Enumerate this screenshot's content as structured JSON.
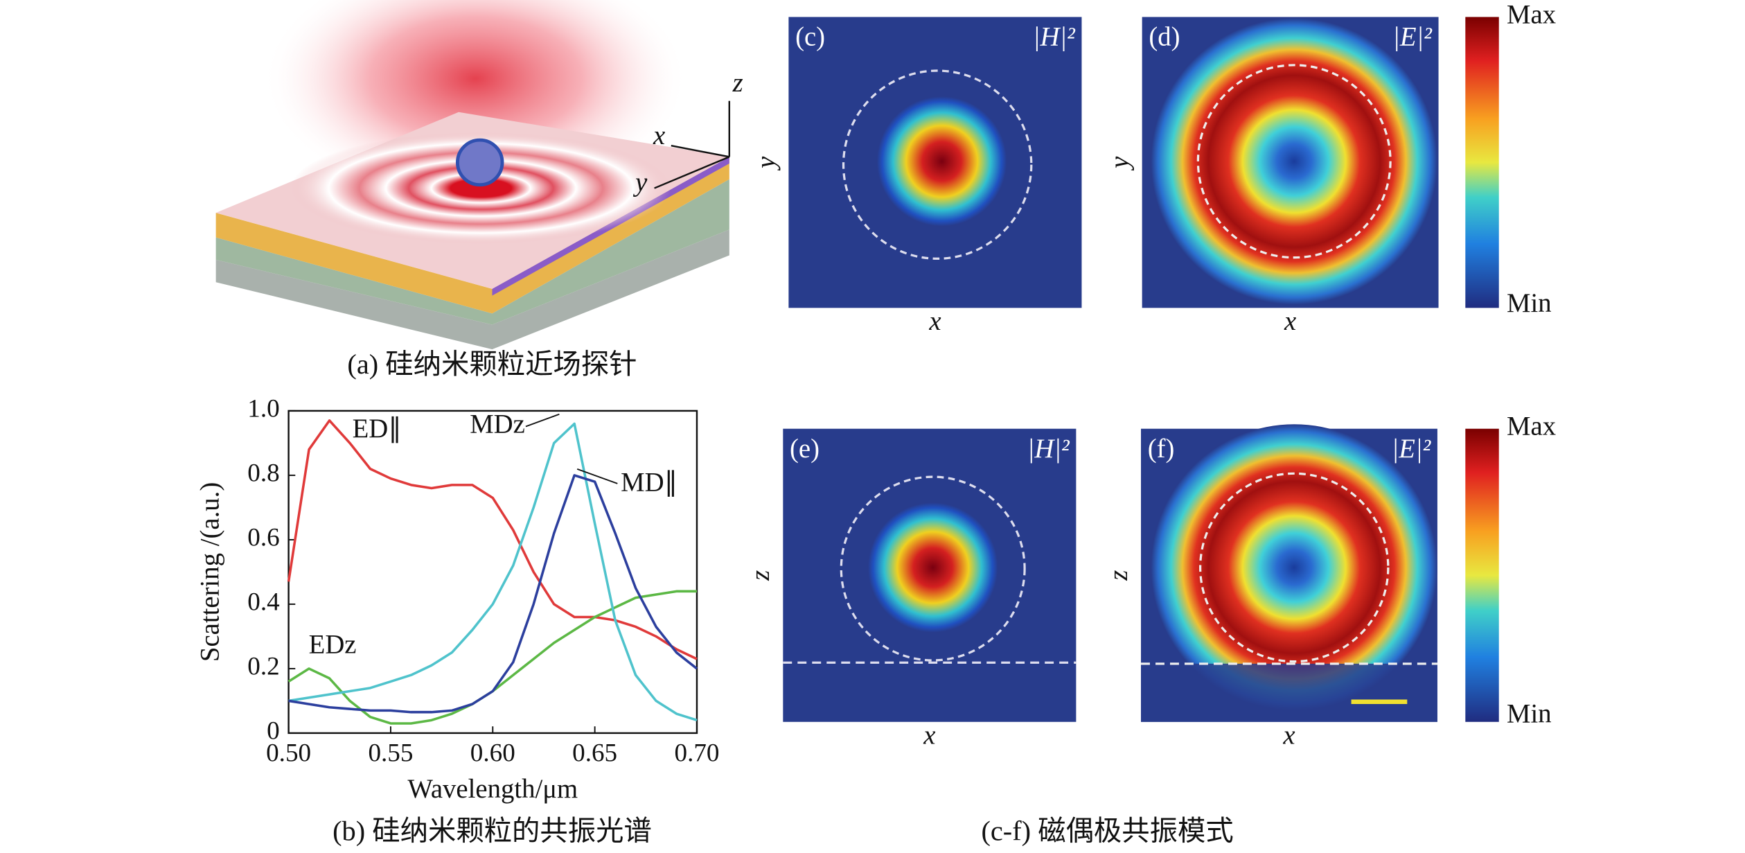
{
  "chart_data": {
    "type": "line",
    "xlabel": "Wavelength/μm",
    "ylabel": "Scattering /(a.u.)",
    "x": [
      0.5,
      0.51,
      0.52,
      0.53,
      0.54,
      0.55,
      0.56,
      0.57,
      0.58,
      0.59,
      0.6,
      0.61,
      0.62,
      0.63,
      0.64,
      0.65,
      0.66,
      0.67,
      0.68,
      0.69,
      0.7
    ],
    "series": [
      {
        "name": "ED∥",
        "color": "#e03a3a",
        "values": [
          0.47,
          0.88,
          0.97,
          0.9,
          0.82,
          0.79,
          0.77,
          0.76,
          0.77,
          0.77,
          0.73,
          0.63,
          0.5,
          0.4,
          0.36,
          0.36,
          0.35,
          0.33,
          0.3,
          0.26,
          0.23
        ]
      },
      {
        "name": "EDz",
        "color": "#5cb845",
        "values": [
          0.16,
          0.2,
          0.17,
          0.1,
          0.05,
          0.03,
          0.03,
          0.04,
          0.06,
          0.09,
          0.13,
          0.18,
          0.23,
          0.28,
          0.32,
          0.36,
          0.39,
          0.42,
          0.43,
          0.44,
          0.44
        ]
      },
      {
        "name": "MDz",
        "color": "#4fc3cc",
        "values": [
          0.1,
          0.11,
          0.12,
          0.13,
          0.14,
          0.16,
          0.18,
          0.21,
          0.25,
          0.32,
          0.4,
          0.52,
          0.7,
          0.9,
          0.96,
          0.65,
          0.35,
          0.18,
          0.1,
          0.06,
          0.04
        ]
      },
      {
        "name": "MD∥",
        "color": "#2c3f9e",
        "values": [
          0.1,
          0.09,
          0.08,
          0.075,
          0.07,
          0.07,
          0.065,
          0.065,
          0.07,
          0.09,
          0.13,
          0.22,
          0.4,
          0.62,
          0.8,
          0.78,
          0.62,
          0.45,
          0.33,
          0.25,
          0.2
        ]
      }
    ],
    "xlim": [
      0.5,
      0.7
    ],
    "xticks": [
      {
        "value": 0.5,
        "label": "0.50"
      },
      0.55,
      {
        "value": 0.6,
        "label": "0.60"
      },
      0.65,
      {
        "value": 0.7,
        "label": "0.70"
      }
    ],
    "ylim": [
      0,
      1.0
    ],
    "yticks": [
      0,
      0.2,
      0.4,
      0.6,
      0.8,
      {
        "value": 1,
        "label": "1.0"
      }
    ]
  },
  "captions": [
    "(a) 硅纳米颗粒近场探针",
    "(b) 硅纳米颗粒的共振光谱",
    "(c-f) 磁偶极共振模式"
  ],
  "axes_3d": [
    "z",
    "x",
    "y"
  ],
  "panels": [
    {
      "label": "(c)",
      "field": "|H|²",
      "xlabel": "x",
      "ylabel": "y"
    },
    {
      "label": "(d)",
      "field": "|E|²",
      "xlabel": "x",
      "ylabel": "y"
    },
    {
      "label": "(e)",
      "field": "|H|²",
      "xlabel": "x",
      "ylabel": "z"
    },
    {
      "label": "(f)",
      "field": "|E|²",
      "xlabel": "x",
      "ylabel": "z"
    }
  ],
  "colorbars": [
    {
      "max": "Max",
      "min": "Min"
    },
    {
      "max": "Max",
      "min": "Min"
    }
  ]
}
